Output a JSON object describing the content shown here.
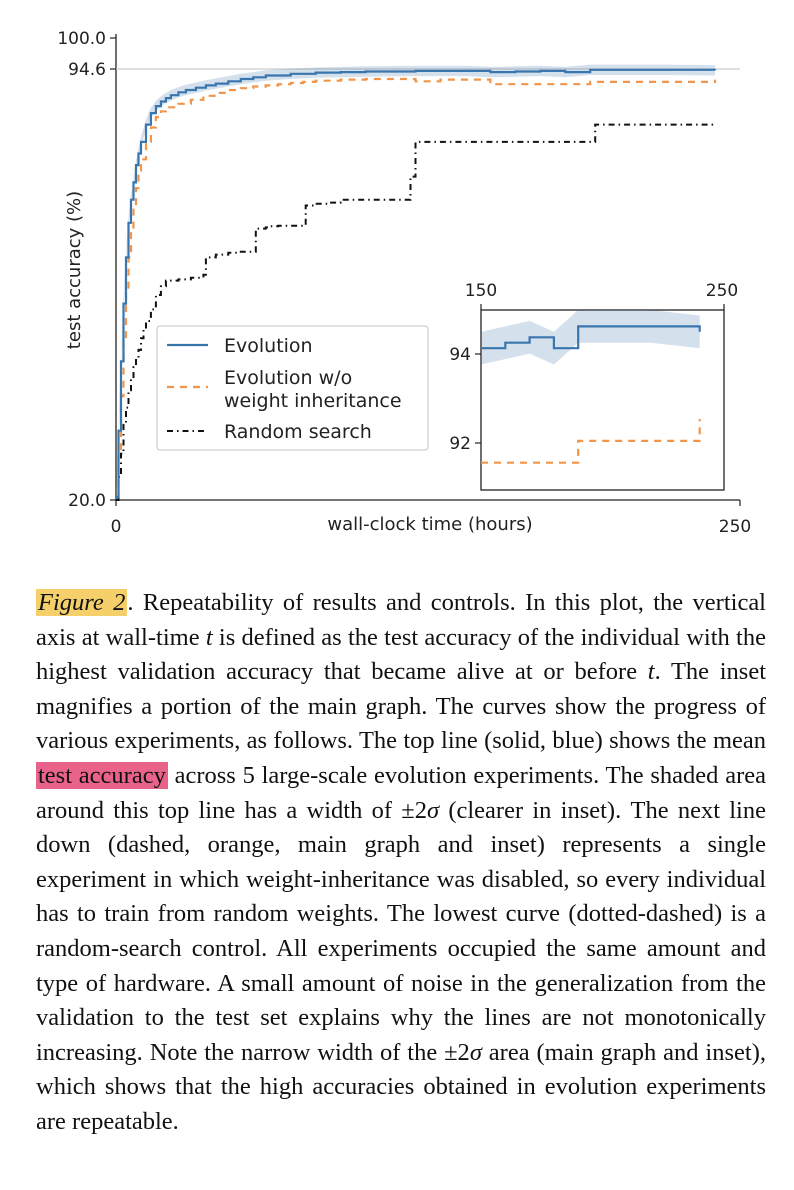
{
  "chart_data": {
    "type": "line",
    "title": "",
    "xlabel": "wall-clock time (hours)",
    "ylabel": "test accuracy (%)",
    "xlim": [
      0,
      250
    ],
    "ylim": [
      20.0,
      100.0
    ],
    "yticks": [
      "20.0",
      "94.6",
      "100.0"
    ],
    "xticks": [
      "0",
      "250"
    ],
    "reference_line": 94.6,
    "grid": false,
    "legend_position": "lower-center",
    "series": [
      {
        "name": "Evolution",
        "style": "solid",
        "color": "#3a75ad",
        "band": "±2σ",
        "x": [
          0,
          1,
          2,
          3,
          4,
          5,
          6,
          7,
          8,
          9,
          10,
          12,
          14,
          16,
          18,
          20,
          22,
          25,
          28,
          32,
          36,
          40,
          45,
          50,
          55,
          60,
          70,
          80,
          90,
          100,
          120,
          140,
          150,
          160,
          170,
          180,
          190,
          200,
          220,
          240
        ],
        "y": [
          20.5,
          32,
          44,
          54,
          62,
          68,
          72,
          75,
          78,
          80,
          82,
          85,
          87,
          88.2,
          89,
          89.6,
          90.1,
          90.6,
          91,
          91.4,
          91.8,
          92.1,
          92.5,
          92.9,
          93.2,
          93.5,
          93.8,
          94.0,
          94.1,
          94.2,
          94.3,
          94.3,
          94.1,
          94.2,
          94.3,
          94.1,
          94.5,
          94.5,
          94.5,
          94.4
        ]
      },
      {
        "name": "Evolution w/o weight inheritance",
        "style": "dashed",
        "color": "#f0954a",
        "x": [
          0,
          1,
          2,
          3,
          4,
          5,
          6,
          7,
          8,
          9,
          10,
          12,
          14,
          16,
          18,
          20,
          25,
          30,
          35,
          40,
          45,
          50,
          55,
          60,
          65,
          70,
          75,
          80,
          90,
          100,
          110,
          120,
          130,
          150,
          160,
          170,
          180,
          190,
          200,
          210,
          220,
          230,
          240
        ],
        "y": [
          20.5,
          28,
          38,
          48,
          56,
          62,
          67,
          71,
          74,
          77,
          79,
          82,
          84.5,
          86.3,
          87.3,
          88,
          88.6,
          89.3,
          90,
          90.5,
          91,
          91.3,
          91.6,
          91.8,
          92,
          92.2,
          92.4,
          92.6,
          92.8,
          92.9,
          92.9,
          92.5,
          92.8,
          92.0,
          92.0,
          92.0,
          92.0,
          92.4,
          92.4,
          92.4,
          92.4,
          92.4,
          92.8
        ]
      },
      {
        "name": "Random search",
        "style": "dash-dot",
        "color": "#111111",
        "x": [
          0,
          1,
          2,
          3,
          4,
          5,
          6,
          7,
          8,
          9,
          10,
          11,
          12,
          14,
          16,
          18,
          20,
          25,
          30,
          35,
          36,
          40,
          45,
          50,
          55,
          56,
          60,
          62,
          65,
          70,
          75,
          76,
          80,
          85,
          90,
          95,
          100,
          110,
          115,
          118,
          120,
          130,
          140,
          150,
          160,
          170,
          180,
          190,
          192,
          200,
          220,
          240
        ],
        "y": [
          20,
          24,
          28,
          33,
          36,
          39,
          41,
          43,
          44.5,
          46,
          48,
          49.5,
          51,
          53,
          55.5,
          57,
          58,
          58.2,
          58.5,
          59,
          62,
          62.5,
          62.8,
          63,
          63,
          67,
          67.2,
          67.4,
          67.5,
          67.5,
          67.5,
          71,
          71.3,
          71.5,
          72,
          72,
          72,
          72,
          72,
          76,
          82,
          82,
          82,
          82,
          82,
          82,
          82,
          82,
          85,
          85,
          85,
          85
        ]
      }
    ],
    "inset": {
      "xlim": [
        150,
        250
      ],
      "ylim": [
        91.5,
        94.8
      ],
      "xticks": [
        "150",
        "250"
      ],
      "yticks": [
        "92",
        "94"
      ]
    }
  },
  "caption": {
    "label": "Figure 2",
    "after_label": ". Repeatability of results and controls. In this plot, the vertical axis at wall-time ",
    "t1": "t",
    "p2": " is defined as the test accuracy of the individual with the highest validation accuracy that became alive at or before ",
    "t2": "t",
    "p3": ". The inset magnifies a portion of the main graph. The curves show the progress of various experiments, as follows. The top line (solid, blue) shows the mean ",
    "highlight": "test accuracy",
    "p4": " across 5 large-scale evolution experiments. The shaded area around this top line has a width of ",
    "pm1": "±2",
    "sigma1": "σ",
    "p5": " (clearer in inset). The next line down (dashed, orange, main graph and inset) represents a single experiment in which weight-inheritance was disabled, so every individual has to train from random weights. The lowest curve (dotted-dashed) is a random-search control. All experiments occupied the same amount and type of hardware. A small amount of noise in the generalization from the validation to the test set explains why the lines are not monotonically increasing. Note the narrow width of the ",
    "pm2": "±2",
    "sigma2": "σ",
    "p6": " area (main graph and inset), which shows that the high accuracies obtained in evolution experiments are repeatable."
  }
}
